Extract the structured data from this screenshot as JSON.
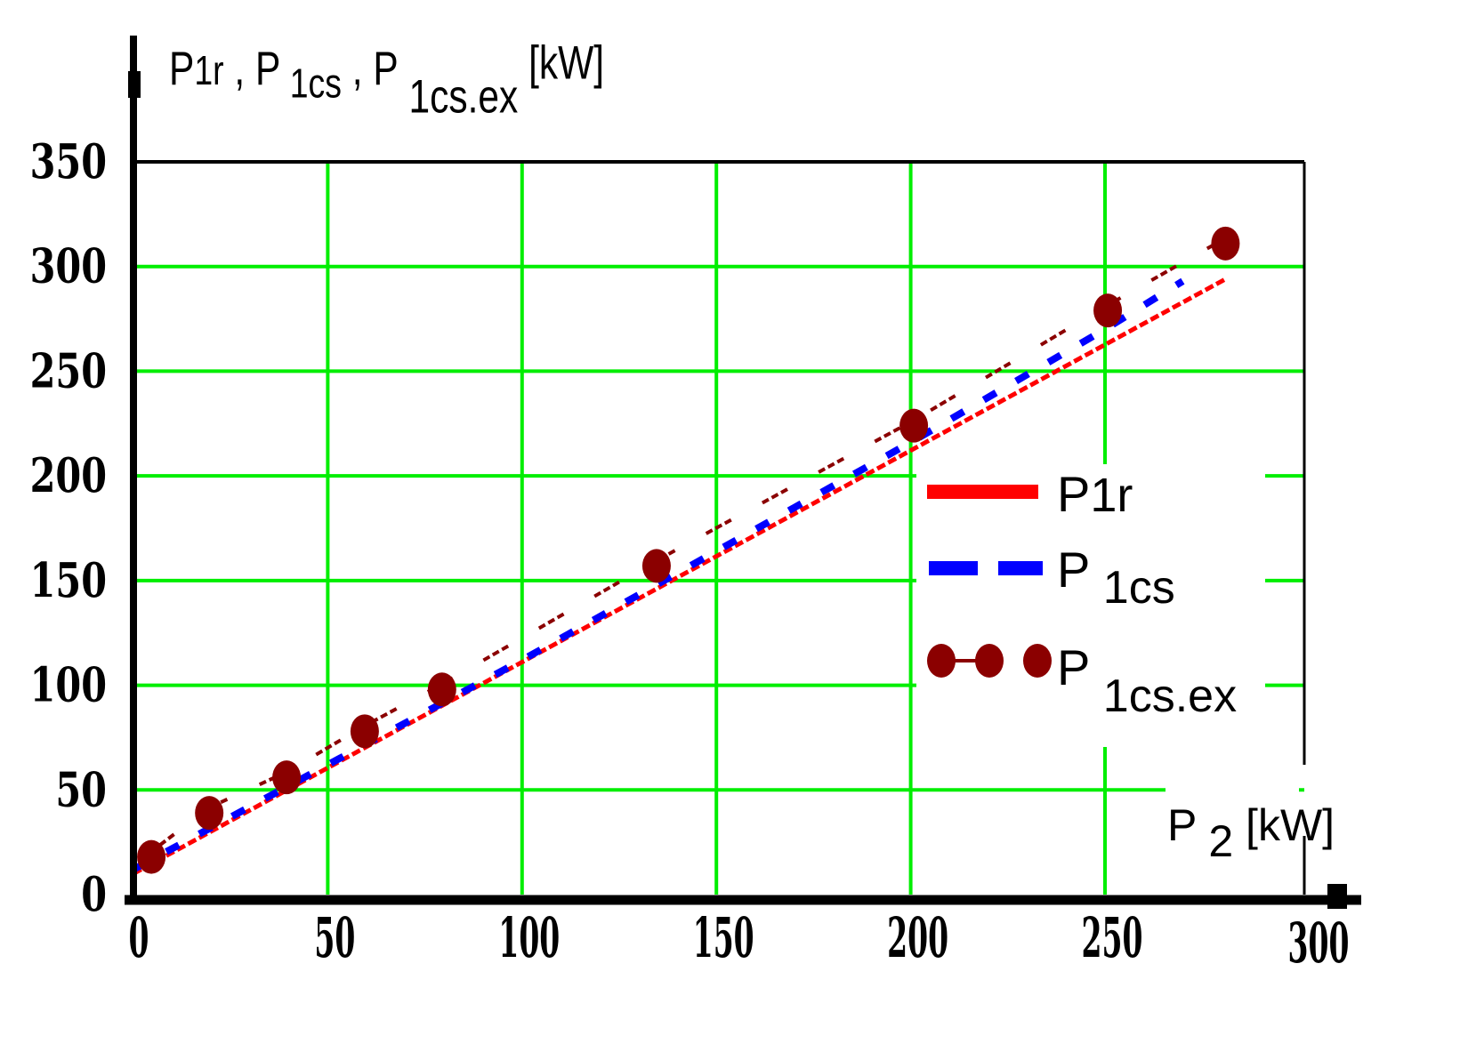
{
  "chart_data": {
    "type": "line",
    "title": "",
    "ylabel": "P1r , P1cs , P1cs.ex [kW]",
    "ylabel_parts": [
      {
        "text": "P",
        "sub": "1r"
      },
      {
        "text": ", P",
        "sub": "1cs"
      },
      {
        "text": ", P",
        "sub": "1cs.ex"
      },
      {
        "text": " [kW]",
        "sub": ""
      }
    ],
    "xlabel": "P2 [kW]",
    "xlabel_parts": [
      {
        "text": "P",
        "sub": "2"
      },
      {
        "text": " [kW]",
        "sub": ""
      }
    ],
    "xlim": [
      0,
      300
    ],
    "ylim": [
      0,
      350
    ],
    "x_ticks": [
      0,
      50,
      100,
      150,
      200,
      250,
      300
    ],
    "y_ticks": [
      0,
      50,
      100,
      150,
      200,
      250,
      300,
      350
    ],
    "grid": true,
    "grid_color": "#00ee00",
    "legend_position": "right-center-inside",
    "series": [
      {
        "name": "P1r",
        "label_main": "P",
        "label_sub": "1r",
        "style": "solid",
        "color": "#ff0000",
        "x": [
          0,
          281
        ],
        "y": [
          10,
          294
        ]
      },
      {
        "name": "P1cs",
        "label_main": "P",
        "label_sub": "1cs",
        "style": "dashed",
        "color": "#0000ff",
        "x": [
          0,
          50,
          100,
          150,
          200,
          250,
          270
        ],
        "y": [
          12,
          62,
          112,
          164,
          216,
          270,
          293
        ]
      },
      {
        "name": "P1cs.ex",
        "label_main": "P",
        "label_sub": "1cs.ex",
        "style": "dash-dot with circle markers",
        "color": "#8b0000",
        "x": [
          4.6,
          19.5,
          39.4,
          59.5,
          79.4,
          134.6,
          200.8,
          250.7,
          281
        ],
        "y": [
          18,
          39,
          56,
          78,
          98,
          157,
          224,
          279,
          311
        ]
      }
    ]
  }
}
